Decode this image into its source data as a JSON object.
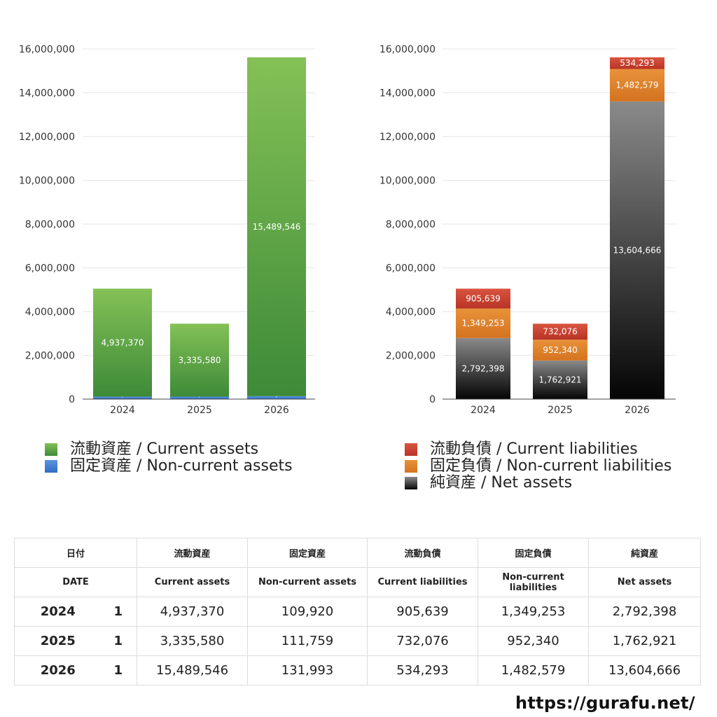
{
  "chart_data": [
    {
      "type": "bar",
      "stacked": true,
      "categories": [
        "2024",
        "2025",
        "2026"
      ],
      "ylim": [
        0,
        16000000
      ],
      "yticks": [
        0,
        2000000,
        4000000,
        6000000,
        8000000,
        10000000,
        12000000,
        14000000,
        16000000
      ],
      "ytick_labels": [
        "0",
        "2,000,000",
        "4,000,000",
        "6,000,000",
        "8,000,000",
        "10,000,000",
        "12,000,000",
        "14,000,000",
        "16,000,000"
      ],
      "series": [
        {
          "name": "固定資産 / Non-current assets",
          "values": [
            109920,
            111759,
            131993
          ],
          "labels": [
            "109,920",
            "111,759",
            "131,993"
          ],
          "color_top": "#5b93e0",
          "color_bottom": "#2f6cc4"
        },
        {
          "name": "流動資産 / Current assets",
          "values": [
            4937370,
            3335580,
            15489546
          ],
          "labels": [
            "4,937,370",
            "3,335,580",
            "15,489,546"
          ],
          "color_top": "#84c156",
          "color_bottom": "#3d8a38"
        }
      ],
      "legend_order": [
        1,
        0
      ]
    },
    {
      "type": "bar",
      "stacked": true,
      "categories": [
        "2024",
        "2025",
        "2026"
      ],
      "ylim": [
        0,
        16000000
      ],
      "yticks": [
        0,
        2000000,
        4000000,
        6000000,
        8000000,
        10000000,
        12000000,
        14000000,
        16000000
      ],
      "ytick_labels": [
        "0",
        "2,000,000",
        "4,000,000",
        "6,000,000",
        "8,000,000",
        "10,000,000",
        "12,000,000",
        "14,000,000",
        "16,000,000"
      ],
      "series": [
        {
          "name": "純資産 / Net assets",
          "values": [
            2792398,
            1762921,
            13604666
          ],
          "labels": [
            "2,792,398",
            "1,762,921",
            "13,604,666"
          ],
          "color_top": "#8a8a8a",
          "color_bottom": "#050505"
        },
        {
          "name": "固定負債 / Non-current liabilities",
          "values": [
            1349253,
            952340,
            1482579
          ],
          "labels": [
            "1,349,253",
            "952,340",
            "1,482,579"
          ],
          "color_top": "#e8923a",
          "color_bottom": "#d4731f"
        },
        {
          "name": "流動負債 / Current liabilities",
          "values": [
            905639,
            732076,
            534293
          ],
          "labels": [
            "905,639",
            "732,076",
            "534,293"
          ],
          "color_top": "#d9543f",
          "color_bottom": "#b83325"
        }
      ],
      "legend_order": [
        2,
        1,
        0
      ]
    }
  ],
  "table": {
    "header_jp": [
      "日付",
      "流動資産",
      "固定資産",
      "流動負債",
      "固定負債",
      "純資産"
    ],
    "header_en": [
      "DATE",
      "Current assets",
      "Non-current assets",
      "Current liabilities",
      "Non-current liabilities",
      "Net assets"
    ],
    "rows": [
      {
        "year": "2024",
        "count": "1",
        "values": [
          "4,937,370",
          "109,920",
          "905,639",
          "1,349,253",
          "2,792,398"
        ]
      },
      {
        "year": "2025",
        "count": "1",
        "values": [
          "3,335,580",
          "111,759",
          "732,076",
          "952,340",
          "1,762,921"
        ]
      },
      {
        "year": "2026",
        "count": "1",
        "values": [
          "15,489,546",
          "131,993",
          "534,293",
          "1,482,579",
          "13,604,666"
        ]
      }
    ]
  },
  "site_url": "https://gurafu.net/"
}
